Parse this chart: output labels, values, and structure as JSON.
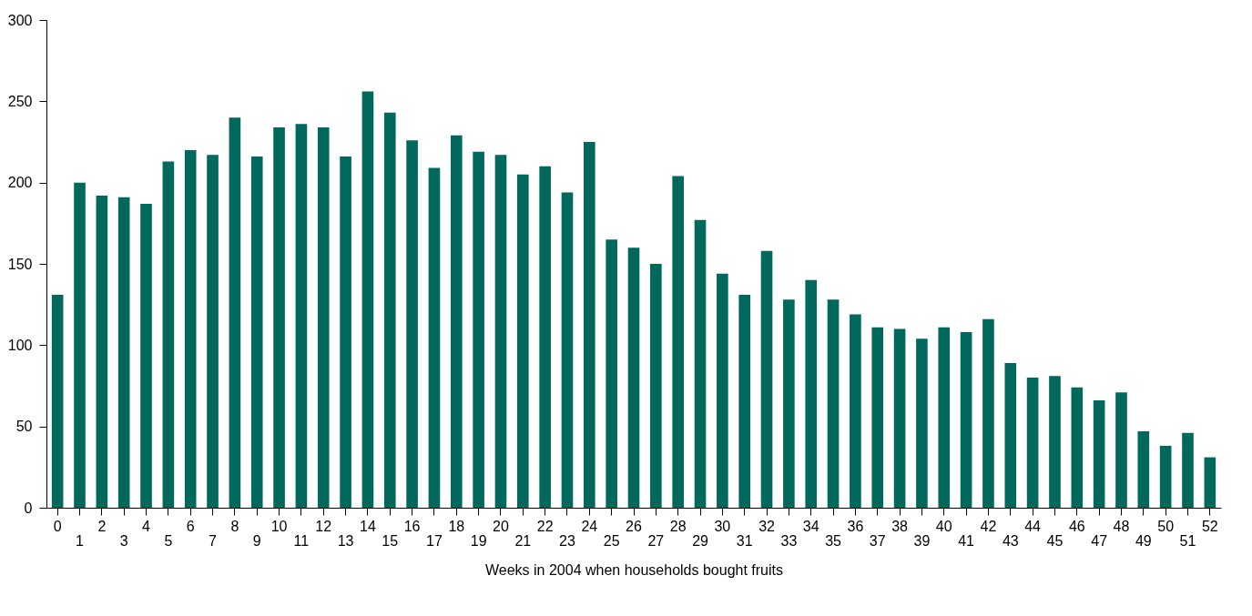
{
  "chart_data": {
    "type": "bar",
    "xlabel": "Weeks in 2004 when households bought fruits",
    "categories": [
      "0",
      "1",
      "2",
      "3",
      "4",
      "5",
      "6",
      "7",
      "8",
      "9",
      "10",
      "11",
      "12",
      "13",
      "14",
      "15",
      "16",
      "17",
      "18",
      "19",
      "20",
      "21",
      "22",
      "23",
      "24",
      "25",
      "26",
      "27",
      "28",
      "29",
      "30",
      "31",
      "32",
      "33",
      "34",
      "35",
      "36",
      "37",
      "38",
      "39",
      "40",
      "41",
      "42",
      "43",
      "44",
      "45",
      "46",
      "47",
      "48",
      "49",
      "50",
      "51",
      "52"
    ],
    "values": [
      131,
      200,
      192,
      191,
      187,
      213,
      220,
      217,
      240,
      216,
      234,
      236,
      234,
      216,
      256,
      243,
      226,
      209,
      229,
      219,
      217,
      205,
      210,
      194,
      225,
      165,
      160,
      150,
      204,
      177,
      144,
      131,
      158,
      128,
      140,
      128,
      119,
      111,
      110,
      104,
      111,
      108,
      116,
      89,
      80,
      81,
      74,
      66,
      71,
      47,
      38,
      46,
      31
    ],
    "color": "#00695c",
    "ylim": [
      0,
      300
    ],
    "yticks": [
      0,
      50,
      100,
      150,
      200,
      250,
      300
    ],
    "grid": false
  }
}
